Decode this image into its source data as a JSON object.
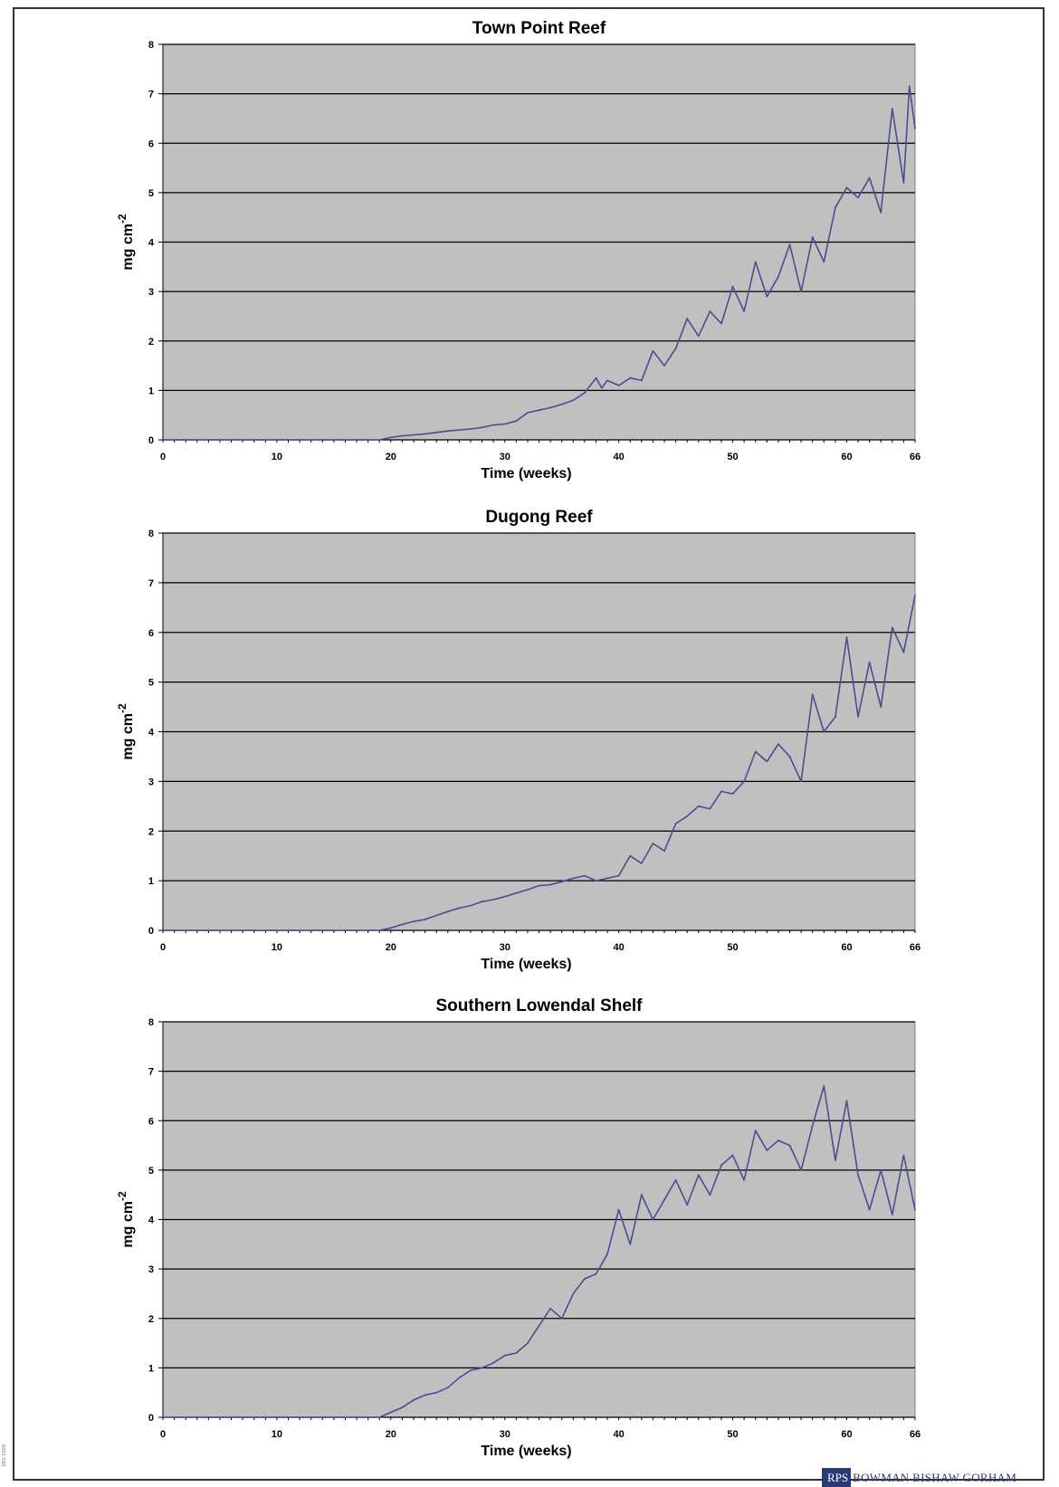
{
  "colors": {
    "plot_bg": "#c0c0c0",
    "gridline": "#000000",
    "series_line": "#4b4d8f",
    "logo_bg": "#2b3a76"
  },
  "footer": {
    "logo_mark": "RPS",
    "logo_text": "BOWMAN BISHAW GORHAM",
    "side_code": "RES 2008"
  },
  "chart_data": [
    {
      "type": "line",
      "title": "Town Point Reef",
      "xlabel": "Time (weeks)",
      "ylabel": "mg cm-2",
      "ylabel_main": "mg cm",
      "ylabel_sup": "-2",
      "xlim": [
        0,
        66
      ],
      "ylim": [
        0,
        8
      ],
      "xticks": [
        0,
        10,
        20,
        30,
        40,
        50,
        60,
        66
      ],
      "yticks": [
        0,
        1,
        2,
        3,
        4,
        5,
        6,
        7,
        8
      ],
      "grid": true,
      "x": [
        19,
        20,
        21,
        22,
        23,
        24,
        25,
        26,
        27,
        28,
        29,
        30,
        31,
        32,
        33,
        34,
        35,
        36,
        37,
        38,
        38.5,
        39,
        40,
        41,
        42,
        43,
        44,
        45,
        46,
        47,
        48,
        49,
        50,
        51,
        52,
        53,
        54,
        55,
        56,
        57,
        58,
        59,
        60,
        61,
        62,
        63,
        64,
        65,
        65.5,
        66
      ],
      "values": [
        0.0,
        0.05,
        0.08,
        0.1,
        0.12,
        0.15,
        0.18,
        0.2,
        0.22,
        0.25,
        0.3,
        0.32,
        0.38,
        0.55,
        0.6,
        0.65,
        0.72,
        0.8,
        0.95,
        1.25,
        1.05,
        1.2,
        1.1,
        1.25,
        1.2,
        1.8,
        1.5,
        1.85,
        2.45,
        2.1,
        2.6,
        2.35,
        3.1,
        2.6,
        3.6,
        2.9,
        3.3,
        3.95,
        3.0,
        4.1,
        3.6,
        4.7,
        5.1,
        4.9,
        5.3,
        4.6,
        6.7,
        5.2,
        7.15,
        6.3
      ],
      "series_name": ""
    },
    {
      "type": "line",
      "title": "Dugong Reef",
      "xlabel": "Time (weeks)",
      "ylabel": "mg cm-2",
      "ylabel_main": "mg cm",
      "ylabel_sup": "-2",
      "xlim": [
        0,
        66
      ],
      "ylim": [
        0,
        8
      ],
      "xticks": [
        0,
        10,
        20,
        30,
        40,
        50,
        60,
        66
      ],
      "yticks": [
        0,
        1,
        2,
        3,
        4,
        5,
        6,
        7,
        8
      ],
      "grid": true,
      "x": [
        19,
        20,
        21,
        22,
        23,
        24,
        25,
        26,
        27,
        28,
        29,
        30,
        31,
        32,
        33,
        34,
        35,
        36,
        37,
        38,
        39,
        40,
        41,
        42,
        43,
        44,
        45,
        46,
        47,
        48,
        49,
        50,
        51,
        52,
        53,
        54,
        55,
        56,
        57,
        58,
        59,
        60,
        61,
        62,
        63,
        64,
        65,
        66
      ],
      "values": [
        0.0,
        0.05,
        0.12,
        0.18,
        0.22,
        0.3,
        0.38,
        0.45,
        0.5,
        0.58,
        0.62,
        0.68,
        0.75,
        0.82,
        0.9,
        0.92,
        0.98,
        1.05,
        1.1,
        1.0,
        1.05,
        1.1,
        1.5,
        1.35,
        1.75,
        1.6,
        2.15,
        2.3,
        2.5,
        2.45,
        2.8,
        2.75,
        3.0,
        3.6,
        3.4,
        3.75,
        3.5,
        3.0,
        4.75,
        4.0,
        4.3,
        5.9,
        4.3,
        5.4,
        4.5,
        6.1,
        5.6,
        6.75
      ],
      "series_name": ""
    },
    {
      "type": "line",
      "title": "Southern Lowendal Shelf",
      "xlabel": "Time (weeks)",
      "ylabel": "mg cm-2",
      "ylabel_main": "mg cm",
      "ylabel_sup": "-2",
      "xlim": [
        0,
        66
      ],
      "ylim": [
        0,
        8
      ],
      "xticks": [
        0,
        10,
        20,
        30,
        40,
        50,
        60,
        66
      ],
      "yticks": [
        0,
        1,
        2,
        3,
        4,
        5,
        6,
        7,
        8
      ],
      "grid": true,
      "x": [
        19,
        20,
        21,
        22,
        23,
        24,
        25,
        26,
        27,
        28,
        29,
        30,
        31,
        32,
        33,
        34,
        35,
        36,
        37,
        38,
        39,
        40,
        41,
        42,
        43,
        44,
        45,
        46,
        47,
        48,
        49,
        50,
        51,
        52,
        53,
        54,
        55,
        56,
        57,
        58,
        59,
        60,
        61,
        62,
        63,
        64,
        65,
        66
      ],
      "values": [
        0.0,
        0.1,
        0.2,
        0.35,
        0.45,
        0.5,
        0.6,
        0.8,
        0.95,
        1.0,
        1.1,
        1.25,
        1.3,
        1.5,
        1.85,
        2.2,
        2.0,
        2.5,
        2.8,
        2.9,
        3.3,
        4.2,
        3.5,
        4.5,
        4.0,
        4.4,
        4.8,
        4.3,
        4.9,
        4.5,
        5.1,
        5.3,
        4.8,
        5.8,
        5.4,
        5.6,
        5.5,
        5.0,
        5.9,
        6.7,
        5.2,
        6.4,
        4.9,
        4.2,
        5.0,
        4.1,
        5.3,
        4.2
      ],
      "series_name": ""
    }
  ]
}
